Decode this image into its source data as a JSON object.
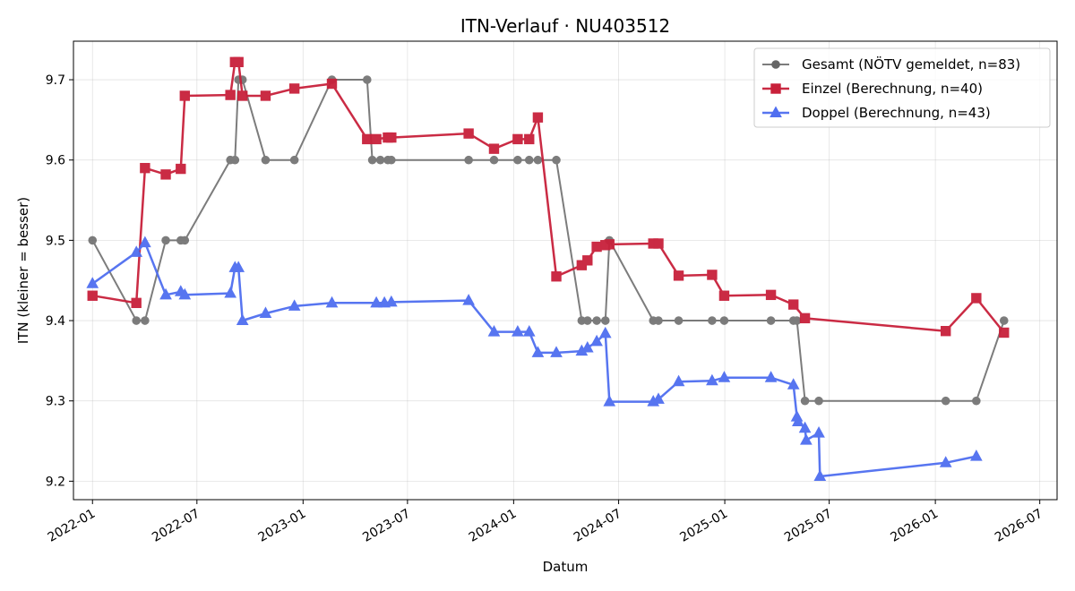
{
  "chart_data": {
    "type": "line",
    "title": "ITN-Verlauf · NU403512",
    "xlabel": "Datum",
    "ylabel": "ITN  (kleiner = besser)",
    "x_axis": {
      "type": "date",
      "range": [
        "2021-11-29",
        "2026-07-31"
      ],
      "ticks": [
        "2022-01-01",
        "2022-07-01",
        "2023-01-01",
        "2023-07-01",
        "2024-01-01",
        "2024-07-01",
        "2025-01-01",
        "2025-07-01",
        "2026-01-01",
        "2026-07-01"
      ],
      "tick_labels": [
        "2022-01",
        "2022-07",
        "2023-01",
        "2023-07",
        "2024-01",
        "2024-07",
        "2025-01",
        "2025-07",
        "2026-01",
        "2026-07"
      ]
    },
    "y_axis": {
      "range": [
        9.177,
        9.748
      ],
      "ticks": [
        9.2,
        9.3,
        9.4,
        9.5,
        9.6,
        9.7
      ],
      "tick_labels": [
        "9.2",
        "9.3",
        "9.4",
        "9.5",
        "9.6",
        "9.7"
      ]
    },
    "grid": true,
    "legend_position": "top-right",
    "series": [
      {
        "name": "Gesamt (NÖTV gemeldet, n=83)",
        "color": "#666666",
        "marker": "circle",
        "points": [
          [
            "2022-01-01",
            9.5
          ],
          [
            "2022-03-18",
            9.4
          ],
          [
            "2022-04-02",
            9.4
          ],
          [
            "2022-05-08",
            9.5
          ],
          [
            "2022-06-03",
            9.5
          ],
          [
            "2022-06-10",
            9.5
          ],
          [
            "2022-08-28",
            9.6
          ],
          [
            "2022-09-05",
            9.6
          ],
          [
            "2022-09-11",
            9.7
          ],
          [
            "2022-09-18",
            9.7
          ],
          [
            "2022-10-28",
            9.6
          ],
          [
            "2022-12-17",
            9.6
          ],
          [
            "2023-02-20",
            9.7
          ],
          [
            "2023-04-22",
            9.7
          ],
          [
            "2023-05-01",
            9.6
          ],
          [
            "2023-05-15",
            9.6
          ],
          [
            "2023-05-28",
            9.6
          ],
          [
            "2023-06-03",
            9.6
          ],
          [
            "2023-10-15",
            9.6
          ],
          [
            "2023-11-28",
            9.6
          ],
          [
            "2024-01-08",
            9.6
          ],
          [
            "2024-01-28",
            9.6
          ],
          [
            "2024-02-12",
            9.6
          ],
          [
            "2024-03-15",
            9.6
          ],
          [
            "2024-04-28",
            9.4
          ],
          [
            "2024-05-08",
            9.4
          ],
          [
            "2024-05-24",
            9.4
          ],
          [
            "2024-06-08",
            9.4
          ],
          [
            "2024-06-15",
            9.5
          ],
          [
            "2024-08-30",
            9.4
          ],
          [
            "2024-09-08",
            9.4
          ],
          [
            "2024-10-13",
            9.4
          ],
          [
            "2024-12-10",
            9.4
          ],
          [
            "2024-12-31",
            9.4
          ],
          [
            "2025-03-22",
            9.4
          ],
          [
            "2025-04-30",
            9.4
          ],
          [
            "2025-05-06",
            9.4
          ],
          [
            "2025-05-20",
            9.3
          ],
          [
            "2025-06-13",
            9.3
          ],
          [
            "2026-01-19",
            9.3
          ],
          [
            "2026-03-13",
            9.3
          ],
          [
            "2026-04-30",
            9.4
          ]
        ]
      },
      {
        "name": "Einzel (Berechnung, n=40)",
        "color": "#c8203a",
        "marker": "square",
        "points": [
          [
            "2022-01-01",
            9.431
          ],
          [
            "2022-03-18",
            9.422
          ],
          [
            "2022-04-02",
            9.59
          ],
          [
            "2022-05-08",
            9.582
          ],
          [
            "2022-06-03",
            9.589
          ],
          [
            "2022-06-10",
            9.68
          ],
          [
            "2022-08-28",
            9.681
          ],
          [
            "2022-09-05",
            9.722
          ],
          [
            "2022-09-11",
            9.722
          ],
          [
            "2022-09-18",
            9.68
          ],
          [
            "2022-10-28",
            9.68
          ],
          [
            "2022-12-17",
            9.689
          ],
          [
            "2023-02-20",
            9.695
          ],
          [
            "2023-04-22",
            9.626
          ],
          [
            "2023-05-08",
            9.626
          ],
          [
            "2023-05-28",
            9.628
          ],
          [
            "2023-06-03",
            9.628
          ],
          [
            "2023-10-15",
            9.633
          ],
          [
            "2023-11-28",
            9.614
          ],
          [
            "2024-01-08",
            9.626
          ],
          [
            "2024-01-28",
            9.626
          ],
          [
            "2024-02-12",
            9.653
          ],
          [
            "2024-03-15",
            9.455
          ],
          [
            "2024-04-28",
            9.469
          ],
          [
            "2024-05-08",
            9.475
          ],
          [
            "2024-05-24",
            9.492
          ],
          [
            "2024-06-08",
            9.494
          ],
          [
            "2024-06-15",
            9.495
          ],
          [
            "2024-08-30",
            9.496
          ],
          [
            "2024-09-08",
            9.496
          ],
          [
            "2024-10-13",
            9.456
          ],
          [
            "2024-12-10",
            9.457
          ],
          [
            "2024-12-31",
            9.431
          ],
          [
            "2025-03-22",
            9.432
          ],
          [
            "2025-04-30",
            9.42
          ],
          [
            "2025-05-20",
            9.403
          ],
          [
            "2026-01-19",
            9.387
          ],
          [
            "2026-03-13",
            9.428
          ],
          [
            "2026-04-30",
            9.385
          ]
        ]
      },
      {
        "name": "Doppel (Berechnung, n=43)",
        "color": "#4f6ef0",
        "marker": "triangle",
        "points": [
          [
            "2022-01-01",
            9.446
          ],
          [
            "2022-03-18",
            9.485
          ],
          [
            "2022-04-02",
            9.497
          ],
          [
            "2022-05-08",
            9.432
          ],
          [
            "2022-06-03",
            9.436
          ],
          [
            "2022-06-10",
            9.432
          ],
          [
            "2022-08-28",
            9.434
          ],
          [
            "2022-09-05",
            9.466
          ],
          [
            "2022-09-11",
            9.466
          ],
          [
            "2022-09-18",
            9.4
          ],
          [
            "2022-10-28",
            9.409
          ],
          [
            "2022-12-17",
            9.418
          ],
          [
            "2023-02-20",
            9.422
          ],
          [
            "2023-05-08",
            9.422
          ],
          [
            "2023-05-22",
            9.422
          ],
          [
            "2023-06-03",
            9.423
          ],
          [
            "2023-10-15",
            9.425
          ],
          [
            "2023-11-28",
            9.386
          ],
          [
            "2024-01-08",
            9.386
          ],
          [
            "2024-01-28",
            9.386
          ],
          [
            "2024-02-12",
            9.36
          ],
          [
            "2024-03-15",
            9.36
          ],
          [
            "2024-04-28",
            9.362
          ],
          [
            "2024-05-08",
            9.366
          ],
          [
            "2024-05-24",
            9.374
          ],
          [
            "2024-06-08",
            9.384
          ],
          [
            "2024-06-15",
            9.299
          ],
          [
            "2024-08-30",
            9.299
          ],
          [
            "2024-09-08",
            9.302
          ],
          [
            "2024-10-13",
            9.324
          ],
          [
            "2024-12-10",
            9.325
          ],
          [
            "2024-12-31",
            9.329
          ],
          [
            "2025-03-22",
            9.329
          ],
          [
            "2025-04-30",
            9.32
          ],
          [
            "2025-05-06",
            9.28
          ],
          [
            "2025-05-08",
            9.274
          ],
          [
            "2025-05-20",
            9.266
          ],
          [
            "2025-05-22",
            9.251
          ],
          [
            "2025-06-13",
            9.26
          ],
          [
            "2025-06-15",
            9.206
          ],
          [
            "2026-01-19",
            9.223
          ],
          [
            "2026-03-13",
            9.231
          ]
        ]
      }
    ]
  }
}
